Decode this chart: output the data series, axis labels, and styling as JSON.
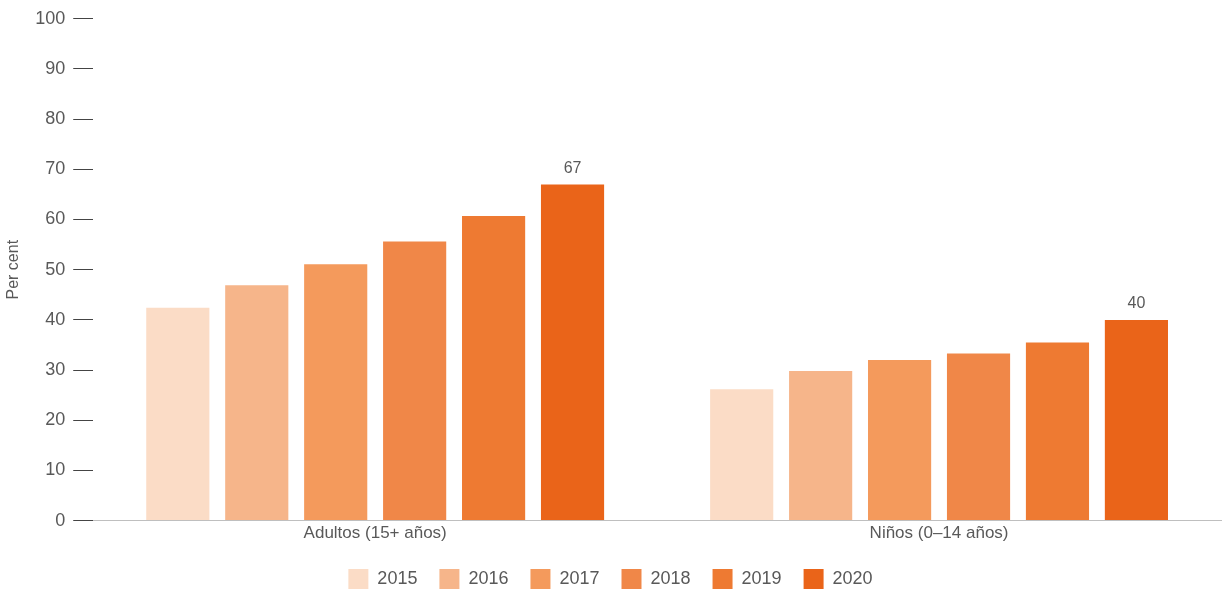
{
  "chart_data": {
    "type": "bar",
    "ylabel": "Per cent",
    "categories": [
      "Adultos (15+ años)",
      "Niños (0–14 años)"
    ],
    "ylim": [
      0,
      100
    ],
    "yticks": [
      0,
      10,
      20,
      30,
      40,
      50,
      60,
      70,
      80,
      90,
      100
    ],
    "grid": false,
    "legend": "bottom",
    "series": [
      {
        "name": "2015",
        "color": "#fbdcc6",
        "values": [
          42.4,
          26.2
        ]
      },
      {
        "name": "2016",
        "color": "#f6b58a",
        "values": [
          46.9,
          29.8
        ]
      },
      {
        "name": "2017",
        "color": "#f49a5c",
        "values": [
          51.1,
          32
        ]
      },
      {
        "name": "2018",
        "color": "#f08748",
        "values": [
          55.6,
          33.3
        ]
      },
      {
        "name": "2019",
        "color": "#ee7a32",
        "values": [
          60.7,
          35.5
        ]
      },
      {
        "name": "2020",
        "color": "#ea6419",
        "values": [
          67,
          40
        ],
        "value_labels": [
          "67",
          "40"
        ]
      }
    ]
  }
}
